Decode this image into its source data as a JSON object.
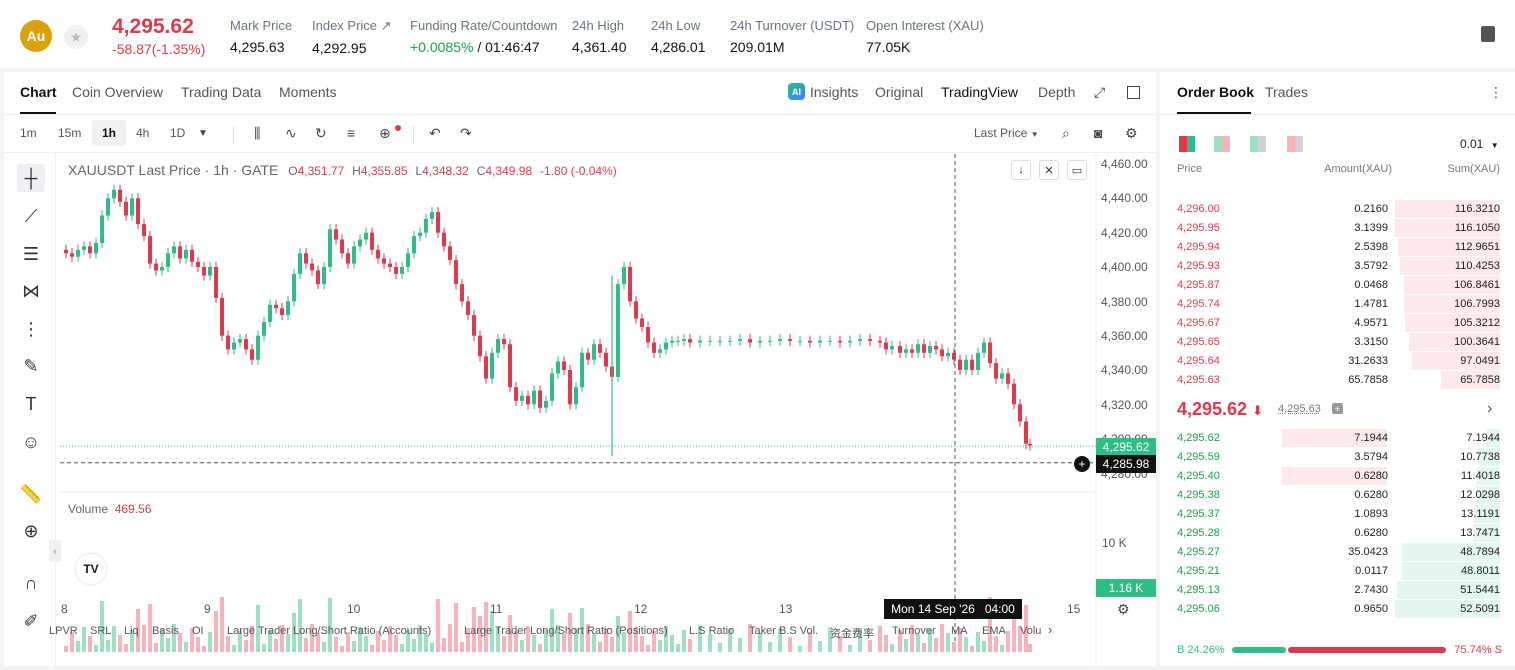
{
  "header": {
    "coin_symbol": "Au",
    "price": "4,295.62",
    "change": "-58.87(-1.35%)",
    "stats": [
      {
        "label": "Mark Price",
        "value": "4,295.63"
      },
      {
        "label": "Index Price ↗",
        "value": "4,292.95"
      },
      {
        "label": "Funding Rate/Countdown",
        "value_green": "+0.0085%",
        "value": " / 01:46:47"
      },
      {
        "label": "24h High",
        "value": "4,361.40"
      },
      {
        "label": "24h Low",
        "value": "4,286.01"
      },
      {
        "label": "24h Turnover (USDT)",
        "value": "209.01M"
      },
      {
        "label": "Open Interest (XAU)",
        "value": "77.05K"
      }
    ]
  },
  "chart_tabs": [
    "Chart",
    "Coin Overview",
    "Trading Data",
    "Moments"
  ],
  "view_tabs": [
    "Insights",
    "Original",
    "TradingView",
    "Depth"
  ],
  "timeframes": [
    "1m",
    "15m",
    "1h",
    "4h",
    "1D"
  ],
  "price_type": "Last Price",
  "legend": {
    "title": "XAUUSDT Last Price · 1h · GATE",
    "o": "4,351.77",
    "h": "4,355.85",
    "l": "4,348.32",
    "c": "4,349.98",
    "chg": "-1.80 (-0.04%)"
  },
  "volume_label": "Volume",
  "volume_value": "469.56",
  "last_price_tag": "4,295.62",
  "cursor_price_tag": "4,285.98",
  "volume_tag": "1.16 K",
  "volume_axis": "10 K",
  "cursor_time": "Mon 14 Sep '26   04:00",
  "price_axis": [
    "4,460.00",
    "4,440.00",
    "4,420.00",
    "4,400.00",
    "4,380.00",
    "4,360.00",
    "4,340.00",
    "4,320.00",
    "4,300.00",
    "4,280.00"
  ],
  "date_axis": [
    "8",
    "9",
    "10",
    "11",
    "12",
    "13",
    "15"
  ],
  "indicators": [
    "LPVR",
    "SRL",
    "Liq",
    "Basis",
    "OI",
    "Large Trader Long/Short Ratio (Accounts)",
    "Large Trader Long/Short Ratio (Positions)",
    "L.S Ratio",
    "Taker B.S Vol.",
    "资金费率",
    "Turnover",
    "MA",
    "EMA",
    "Volu"
  ],
  "order_book": {
    "tabs": [
      "Order Book",
      "Trades"
    ],
    "tick": "0.01",
    "headers": [
      "Price",
      "Amount(XAU)",
      "Sum(XAU)"
    ],
    "asks": [
      [
        "4,296.00",
        "0.2160",
        "116.3210"
      ],
      [
        "4,295.95",
        "3.1399",
        "116.1050"
      ],
      [
        "4,295.94",
        "2.5398",
        "112.9651"
      ],
      [
        "4,295.93",
        "3.5792",
        "110.4253"
      ],
      [
        "4,295.87",
        "0.0468",
        "106.8461"
      ],
      [
        "4,295.74",
        "1.4781",
        "106.7993"
      ],
      [
        "4,295.67",
        "4.9571",
        "105.3212"
      ],
      [
        "4,295.65",
        "3.3150",
        "100.3641"
      ],
      [
        "4,295.64",
        "31.2633",
        "97.0491"
      ],
      [
        "4,295.63",
        "65.7858",
        "65.7858"
      ]
    ],
    "mid_price": "4,295.62",
    "mid_mark": "4,295.63",
    "bids": [
      [
        "4,295.62",
        "7.1944",
        "7.1944"
      ],
      [
        "4,295.59",
        "3.5794",
        "10.7738"
      ],
      [
        "4,295.40",
        "0.6280",
        "11.4018"
      ],
      [
        "4,295.38",
        "0.6280",
        "12.0298"
      ],
      [
        "4,295.37",
        "1.0893",
        "13.1191"
      ],
      [
        "4,295.28",
        "0.6280",
        "13.7471"
      ],
      [
        "4,295.27",
        "35.0423",
        "48.7894"
      ],
      [
        "4,295.21",
        "0.0117",
        "48.8011"
      ],
      [
        "4,295.13",
        "2.7430",
        "51.5441"
      ],
      [
        "4,295.06",
        "0.9650",
        "52.5091"
      ]
    ],
    "buy_ratio": "B 24.26%",
    "sell_ratio": "75.74% S"
  },
  "colors": {
    "up": "#2ebd85",
    "down": "#e0394d",
    "accent": "#d9a20a"
  }
}
